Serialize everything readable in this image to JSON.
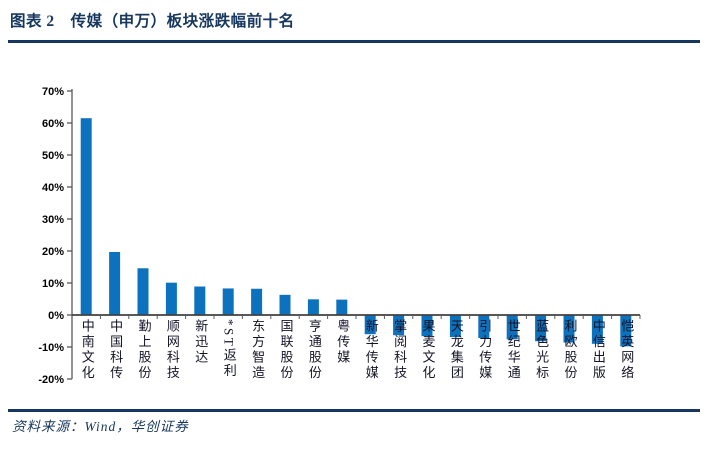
{
  "header": {
    "title": "图表 2　传媒（申万）板块涨跌幅前十名"
  },
  "chart_data": {
    "type": "bar",
    "title": "传媒（申万）板块涨跌幅前十名",
    "categories": [
      "中南文化",
      "中国科传",
      "勤上股份",
      "顺网科技",
      "新迅达",
      "*ST返利",
      "东方智造",
      "国联股份",
      "亨通股份",
      "粤传媒",
      "新华传媒",
      "掌阅科技",
      "果麦文化",
      "天龙集团",
      "引力传媒",
      "世纪华通",
      "蓝色光标",
      "利欧股份",
      "中信出版",
      "恺英网络"
    ],
    "values": [
      61.5,
      19.7,
      14.6,
      10.1,
      8.9,
      8.3,
      8.2,
      6.3,
      4.9,
      4.8,
      -6.0,
      -6.3,
      -6.6,
      -6.9,
      -7.2,
      -7.6,
      -8.2,
      -8.6,
      -9.0,
      -9.8
    ],
    "xlabel": "",
    "ylabel": "",
    "ylim": [
      -20,
      70
    ],
    "ytick_step": 10,
    "yticks": [
      "70%",
      "60%",
      "50%",
      "40%",
      "30%",
      "20%",
      "10%",
      "0%",
      "-10%",
      "-20%"
    ],
    "ytick_suffix": "%",
    "bar_color": "#0d72bd",
    "axis_color": "#595959",
    "zero_line_color": "#404040",
    "grid": false,
    "legend": null
  },
  "footer": {
    "source": "资料来源：Wind，华创证券"
  },
  "colors": {
    "accent": "#17375e",
    "bar": "#0d72bd"
  }
}
